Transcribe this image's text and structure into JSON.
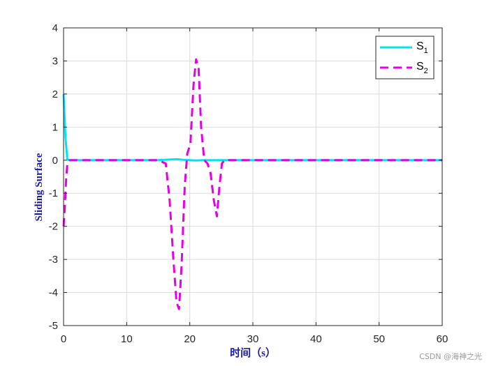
{
  "chart_data": {
    "type": "line",
    "xlabel": "时间（s）",
    "ylabel": "Sliding Surface",
    "xlim": [
      0,
      60
    ],
    "ylim": [
      -5,
      4
    ],
    "xticks": [
      0,
      10,
      20,
      30,
      40,
      50,
      60
    ],
    "yticks": [
      -5,
      -4,
      -3,
      -2,
      -1,
      0,
      1,
      2,
      3,
      4
    ],
    "grid": true,
    "legend_position": "top-right",
    "colors": {
      "axis_title": "#1a1aa6",
      "grid": "#dcdcdc",
      "axes": "#262626"
    },
    "series": [
      {
        "name": "S",
        "subscript": "1",
        "color": "#00e5ee",
        "style": "solid",
        "x": [
          0,
          0.3,
          0.6,
          1,
          5,
          10,
          15,
          17,
          18,
          19,
          20,
          21,
          22,
          23,
          25,
          30,
          40,
          50,
          60
        ],
        "y": [
          2,
          0.7,
          0.02,
          0,
          0,
          0,
          0,
          0.02,
          0.03,
          0.01,
          0,
          -0.01,
          0,
          0,
          0,
          0,
          0,
          0,
          0
        ]
      },
      {
        "name": "S",
        "subscript": "2",
        "color": "#e600e6",
        "style": "dashed",
        "x": [
          0,
          0.2,
          0.4,
          0.6,
          1,
          5,
          10,
          15,
          16.2,
          16.8,
          17.4,
          17.9,
          18.3,
          18.7,
          19.2,
          19.6,
          20.1,
          20.6,
          21,
          21.4,
          21.8,
          22.3,
          22.8,
          23.3,
          23.8,
          24.3,
          24.7,
          25.1,
          25.5,
          30,
          40,
          50,
          60
        ],
        "y": [
          -2,
          -1.4,
          -0.6,
          -0.1,
          0,
          0,
          0,
          0,
          -0.1,
          -1.2,
          -3,
          -4.3,
          -4.5,
          -3.2,
          -0.8,
          0.2,
          0.5,
          2.3,
          3.05,
          2.8,
          1,
          0,
          -0.1,
          -0.4,
          -1.2,
          -1.7,
          -0.8,
          -0.1,
          0,
          0,
          0,
          0,
          0
        ]
      }
    ]
  },
  "watermark": "CSDN @海神之光"
}
